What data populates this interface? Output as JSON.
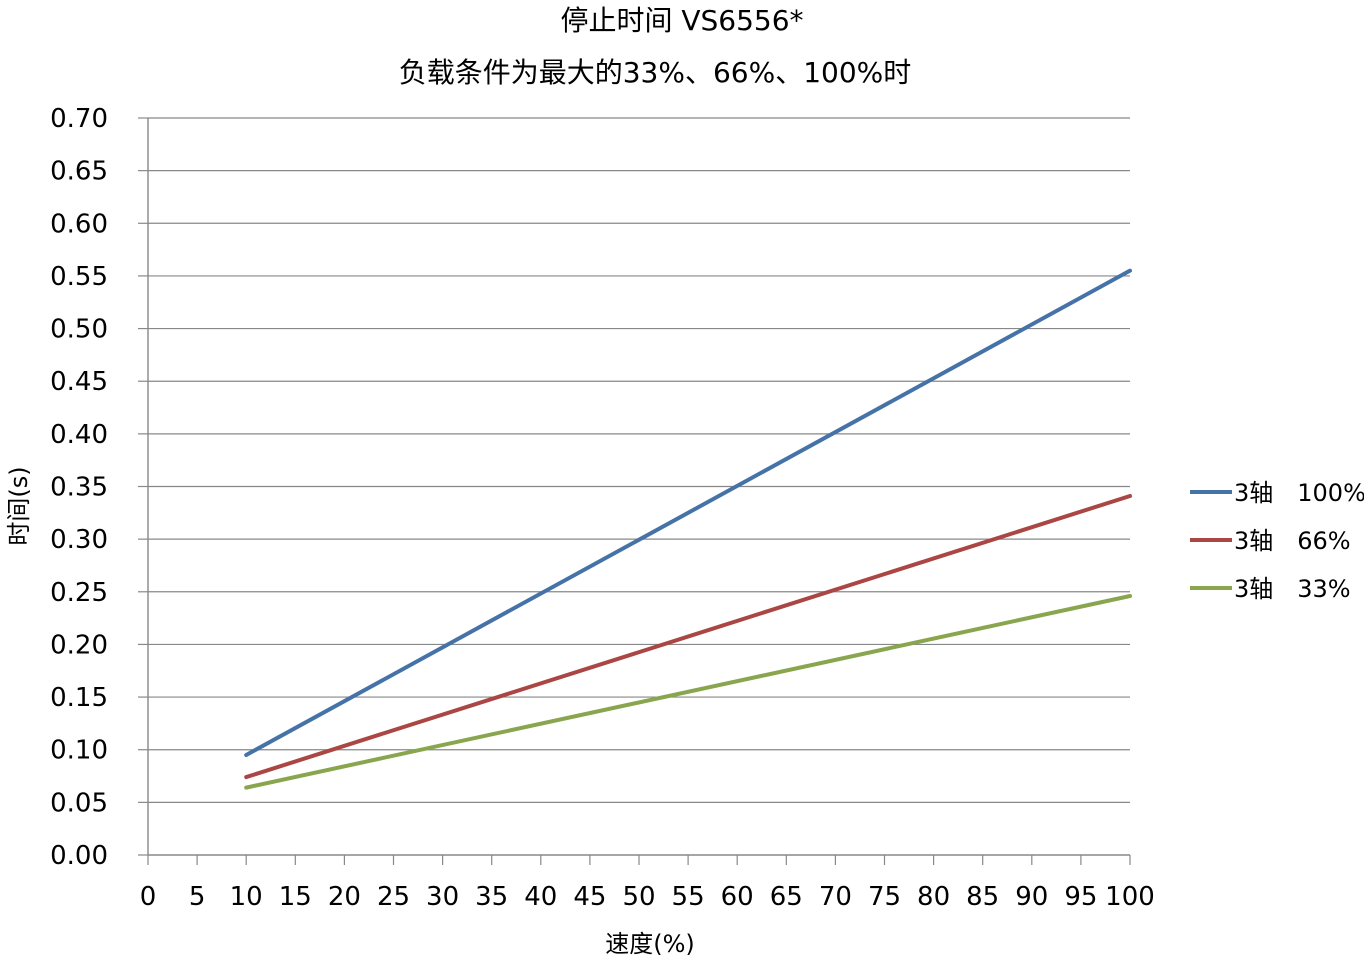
{
  "chart_data": {
    "type": "line",
    "title": "停止时间 VS6556*",
    "subtitle": "负载条件为最大的33%、66%、100%时",
    "xlabel": "速度(%)",
    "ylabel": "时间(s)",
    "xlim": [
      0,
      100
    ],
    "ylim": [
      0,
      0.7
    ],
    "x_ticks": [
      "0",
      "5",
      "10",
      "15",
      "20",
      "25",
      "30",
      "35",
      "40",
      "45",
      "50",
      "55",
      "60",
      "65",
      "70",
      "75",
      "80",
      "85",
      "90",
      "95",
      "100"
    ],
    "y_ticks": [
      "0.00",
      "0.05",
      "0.10",
      "0.15",
      "0.20",
      "0.25",
      "0.30",
      "0.35",
      "0.40",
      "0.45",
      "0.50",
      "0.55",
      "0.60",
      "0.65",
      "0.70"
    ],
    "grid": "horizontal",
    "legend_position": "right",
    "series": [
      {
        "name": "3轴　100%",
        "color": "#4572A7",
        "x": [
          10,
          100
        ],
        "y": [
          0.095,
          0.555
        ]
      },
      {
        "name": "3轴　66%",
        "color": "#AA4643",
        "x": [
          10,
          100
        ],
        "y": [
          0.074,
          0.341
        ]
      },
      {
        "name": "3轴　33%",
        "color": "#89A54E",
        "x": [
          10,
          100
        ],
        "y": [
          0.064,
          0.246
        ]
      }
    ]
  }
}
